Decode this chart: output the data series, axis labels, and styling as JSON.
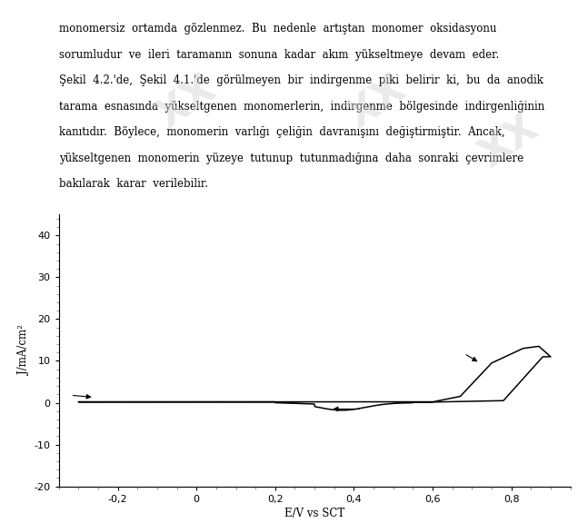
{
  "text_lines": [
    "monomersiz  ortamda  gözlenmez.  Bu  nedenle  artıştan  monomer  oksidasyonu",
    "sorumludur  ve  ileri  taramanın  sonuna  kadar  akım  yükseltmeye  devam  eder.",
    "Şekil  4.2.'de,  Şekil  4.1.'de  görülmeyen  bir  indirgenme  piki  belirir  ki,  bu  da  anodik",
    "tarama  esnasında  yükseltgenen  monomerlerin,  indirgenme  bölgesinde  indirgenliğinin",
    "kanıtıdır.  Böylece,  monomerin  varlığı  çeliğin  davranışını  değiştirmiştir.  Ancak,",
    "yükseltgenen  monomerin  yüzeye  tutunup  tutunmadığına  daha  sonraki  çevrimlere",
    "bakılarak  karar  verilebilir."
  ],
  "xlabel": "E/V vs SCT",
  "ylabel": "J/mA/cm²",
  "xlim": [
    -0.35,
    0.95
  ],
  "ylim": [
    -20,
    45
  ],
  "xticks": [
    -0.2,
    0.0,
    0.2,
    0.4,
    0.6,
    0.8
  ],
  "yticks": [
    -20,
    -10,
    0,
    10,
    20,
    30,
    40
  ],
  "background_color": "#ffffff",
  "line_color": "#000000",
  "figsize": [
    6.47,
    5.76
  ]
}
